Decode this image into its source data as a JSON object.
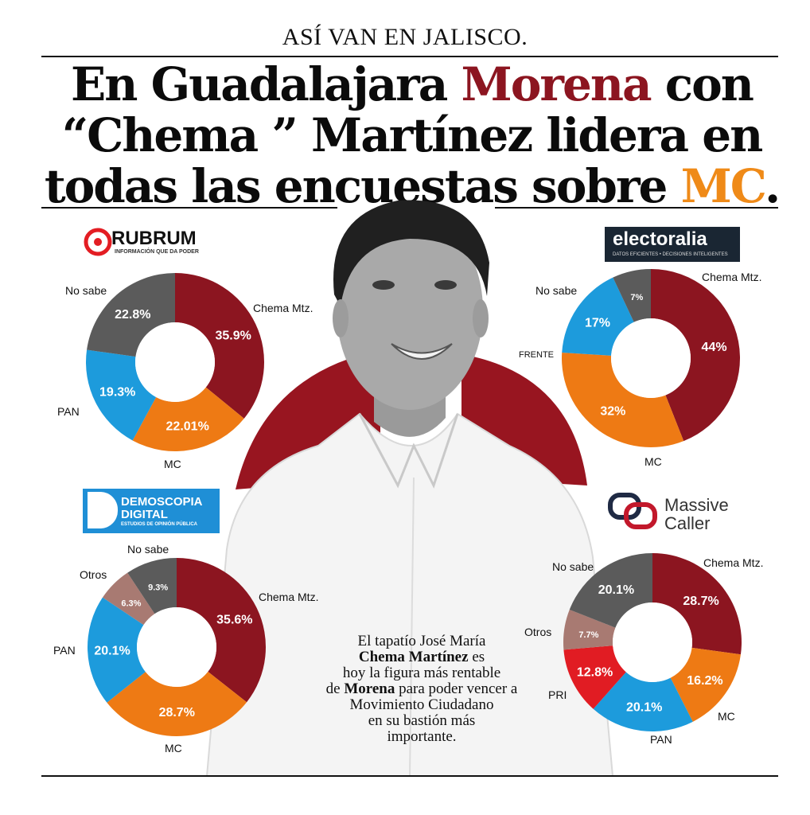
{
  "kicker": "ASÍ VAN EN JALISCO.",
  "headline": {
    "line1_a": "En Guadalajara ",
    "line1_red": "Morena",
    "line1_b": " con",
    "line2": "“Chema ” Martínez lidera en",
    "line3_a": "todas las encuestas sobre ",
    "line3_orange": "MC",
    "line3_b": "."
  },
  "caption": {
    "p1": "El tapatío José María",
    "p2_bold": "Chema Martínez",
    "p2": " es",
    "p3": "hoy la figura más rentable",
    "p4_a": "de ",
    "p4_bold": "Morena",
    "p4_b": " para poder vencer a",
    "p5": "Movimiento Ciudadano",
    "p6": "en su bastión más",
    "p7": "importante."
  },
  "logos": {
    "rubrum": {
      "name": "RUBRUM",
      "tagline": "INFORMACIÓN QUE DA PODER"
    },
    "electoralia": {
      "name": "electoralia",
      "tagline": "DATOS EFICIENTES • DECISIONES INTELIGENTES"
    },
    "demoscopia": {
      "line1": "DEMOSCOPIA",
      "line2": "DIGITAL",
      "tagline": "ESTUDIOS DE OPINIÓN PÚBLICA"
    },
    "massive": {
      "line1": "Massive",
      "line2": "Caller"
    }
  },
  "colors": {
    "morena": "#8c1520",
    "mc": "#ee7a14",
    "pan": "#1d9bdc",
    "nosabe": "#5b5b5b",
    "otros": "#a87a72",
    "pri": "#e11c23",
    "accent_orange": "#ef8a18"
  },
  "chart_data": [
    {
      "type": "pie",
      "source": "RUBRUM",
      "slices": [
        {
          "label": "Chema Mtz.",
          "value": 35.9,
          "display": "35.9%",
          "color": "#8c1520"
        },
        {
          "label": "MC",
          "value": 22.01,
          "display": "22.01%",
          "color": "#ee7a14"
        },
        {
          "label": "PAN",
          "value": 19.3,
          "display": "19.3%",
          "color": "#1d9bdc"
        },
        {
          "label": "No sabe",
          "value": 22.8,
          "display": "22.8%",
          "color": "#5b5b5b"
        }
      ]
    },
    {
      "type": "pie",
      "source": "electoralia",
      "slices": [
        {
          "label": "Chema Mtz.",
          "value": 44,
          "display": "44%",
          "color": "#8c1520"
        },
        {
          "label": "MC",
          "value": 32,
          "display": "32%",
          "color": "#ee7a14"
        },
        {
          "label": "FRENTE",
          "value": 17,
          "display": "17%",
          "color": "#1d9bdc"
        },
        {
          "label": "No sabe",
          "value": 7,
          "display": "7%",
          "color": "#5b5b5b"
        }
      ]
    },
    {
      "type": "pie",
      "source": "DEMOSCOPIA DIGITAL",
      "slices": [
        {
          "label": "Chema Mtz.",
          "value": 35.6,
          "display": "35.6%",
          "color": "#8c1520"
        },
        {
          "label": "MC",
          "value": 28.7,
          "display": "28.7%",
          "color": "#ee7a14"
        },
        {
          "label": "PAN",
          "value": 20.1,
          "display": "20.1%",
          "color": "#1d9bdc"
        },
        {
          "label": "Otros",
          "value": 6.3,
          "display": "6.3%",
          "color": "#a87a72"
        },
        {
          "label": "No sabe",
          "value": 9.3,
          "display": "9.3%",
          "color": "#5b5b5b"
        }
      ]
    },
    {
      "type": "pie",
      "source": "Massive Caller",
      "slices": [
        {
          "label": "Chema Mtz.",
          "value": 28.7,
          "display": "28.7%",
          "color": "#8c1520"
        },
        {
          "label": "MC",
          "value": 16.2,
          "display": "16.2%",
          "color": "#ee7a14"
        },
        {
          "label": "PAN",
          "value": 20.1,
          "display": "20.1%",
          "color": "#1d9bdc"
        },
        {
          "label": "PRI",
          "value": 12.8,
          "display": "12.8%",
          "color": "#e11c23"
        },
        {
          "label": "Otros",
          "value": 7.7,
          "display": "7.7%",
          "color": "#a87a72"
        },
        {
          "label": "No sabe",
          "value": 20.1,
          "display": "20.1%",
          "color": "#5b5b5b"
        }
      ]
    }
  ]
}
